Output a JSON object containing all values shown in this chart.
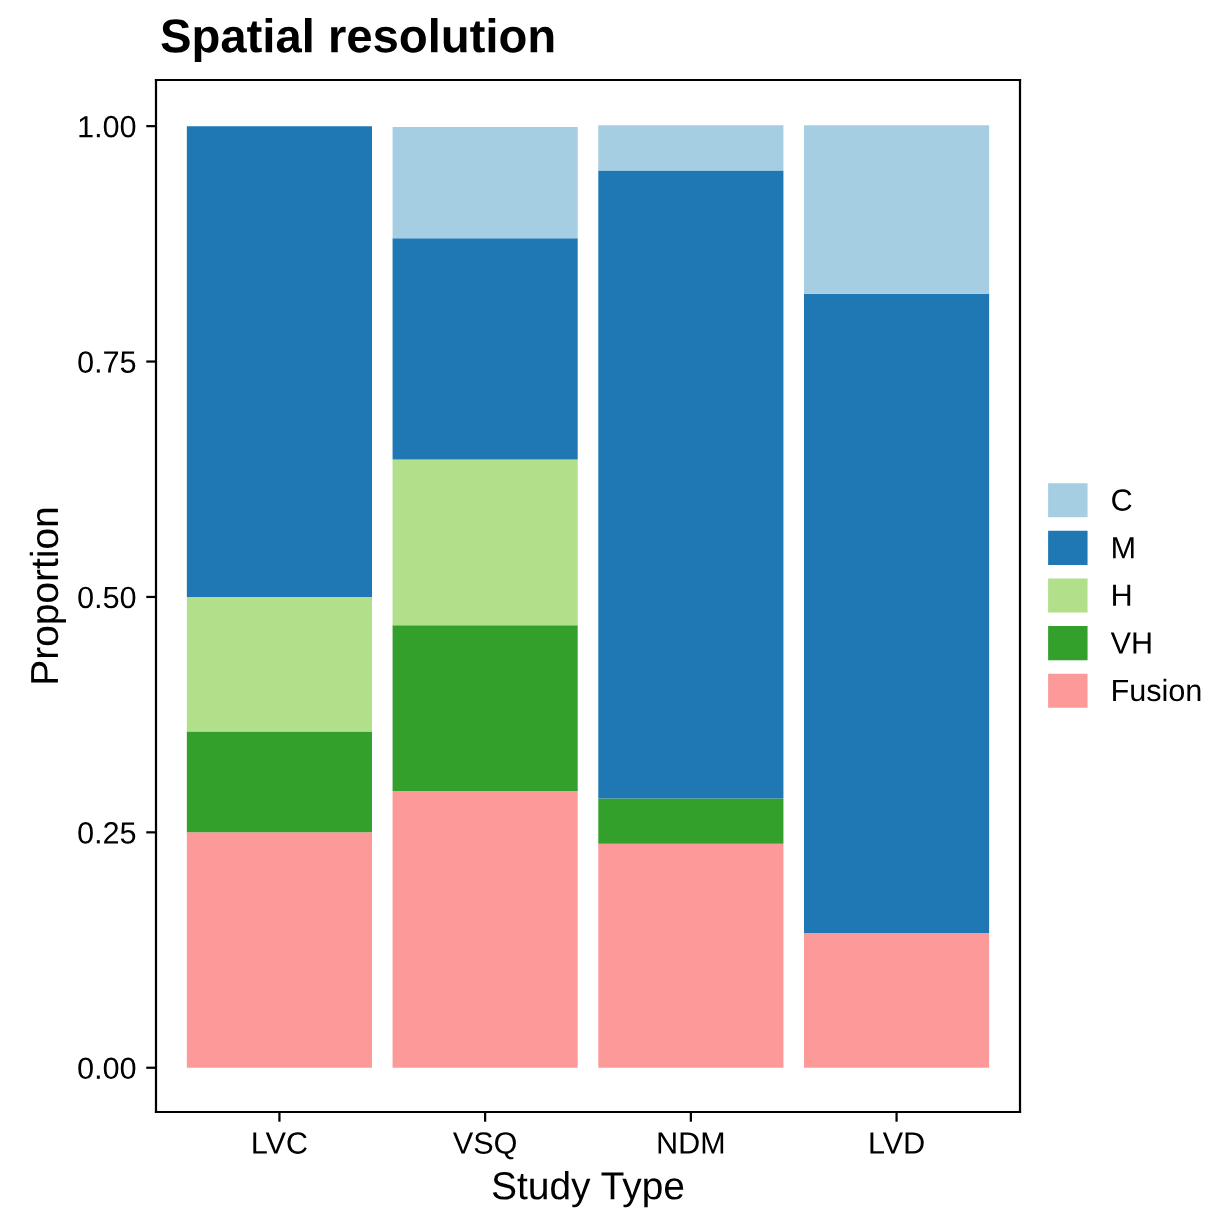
{
  "chart_data": {
    "type": "bar",
    "stacked": true,
    "title": "Spatial resolution",
    "xlabel": "Study Type",
    "ylabel": "Proportion",
    "categories": [
      "LVC",
      "VSQ",
      "NDM",
      "LVD"
    ],
    "series": [
      {
        "name": "Fusion",
        "color": "#fb9a99",
        "values": [
          0.25,
          0.294,
          0.238,
          0.143
        ]
      },
      {
        "name": "VH",
        "color": "#33a02c",
        "values": [
          0.107,
          0.176,
          0.048,
          0
        ]
      },
      {
        "name": "H",
        "color": "#b2df8a",
        "values": [
          0.143,
          0.176,
          0,
          0
        ]
      },
      {
        "name": "M",
        "color": "#1f78b4",
        "values": [
          0.5,
          0.235,
          0.667,
          0.679
        ]
      },
      {
        "name": "C",
        "color": "#a6cee3",
        "values": [
          0,
          0.118,
          0.048,
          0.179
        ]
      }
    ],
    "ylim": [
      -0.047,
      1.049
    ],
    "yticks": [
      {
        "value": 0,
        "label": "0.00"
      },
      {
        "value": 0.25,
        "label": "0.25"
      },
      {
        "value": 0.5,
        "label": "0.50"
      },
      {
        "value": 0.75,
        "label": "0.75"
      },
      {
        "value": 1,
        "label": "1.00"
      }
    ],
    "grid": false,
    "legend": "right"
  }
}
